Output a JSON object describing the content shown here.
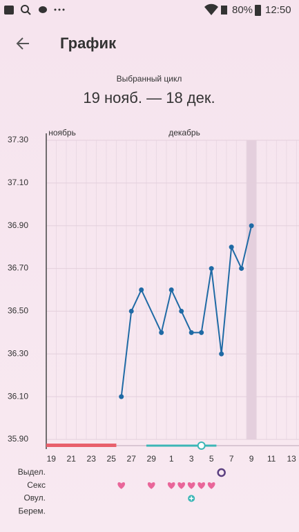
{
  "status_bar": {
    "battery": "80%",
    "time": "12:50"
  },
  "header": {
    "title": "График"
  },
  "cycle": {
    "caption": "Выбранный цикл",
    "range": "19 нояб. — 18 дек."
  },
  "chart_data": {
    "type": "line",
    "months": [
      {
        "label": "ноябрь",
        "x": 0
      },
      {
        "label": "декабрь",
        "x": 12
      }
    ],
    "xlim": [
      -0.5,
      24.75
    ],
    "xticks": [
      {
        "value": 0,
        "label": "19"
      },
      {
        "value": 2,
        "label": "21"
      },
      {
        "value": 4,
        "label": "23"
      },
      {
        "value": 6,
        "label": "25"
      },
      {
        "value": 8,
        "label": "27"
      },
      {
        "value": 10,
        "label": "29"
      },
      {
        "value": 12,
        "label": "1"
      },
      {
        "value": 14,
        "label": "3"
      },
      {
        "value": 16,
        "label": "5"
      },
      {
        "value": 18,
        "label": "7"
      },
      {
        "value": 20,
        "label": "9"
      },
      {
        "value": 22,
        "label": "11"
      },
      {
        "value": 24,
        "label": "13"
      }
    ],
    "ylim": [
      35.9,
      37.3
    ],
    "yticks": [
      {
        "value": 35.9,
        "label": "35.90"
      },
      {
        "value": 36.1,
        "label": "36.10"
      },
      {
        "value": 36.3,
        "label": "36.30"
      },
      {
        "value": 36.5,
        "label": "36.50"
      },
      {
        "value": 36.7,
        "label": "36.70"
      },
      {
        "value": 36.9,
        "label": "36.90"
      },
      {
        "value": 37.1,
        "label": "37.10"
      },
      {
        "value": 37.3,
        "label": "37.30"
      }
    ],
    "grid": true,
    "highlight_x": 20,
    "series": [
      {
        "color": "#1f6aa5",
        "x": [
          7,
          8,
          9,
          11,
          12,
          13,
          14,
          15,
          16,
          17,
          18,
          19,
          20
        ],
        "values": [
          36.1,
          36.5,
          36.6,
          36.4,
          36.6,
          36.5,
          36.4,
          36.4,
          36.7,
          36.3,
          36.8,
          36.7,
          36.9
        ]
      }
    ],
    "period": {
      "color": "#e8606c",
      "x": [
        0,
        6
      ]
    },
    "fertile": {
      "color": "#3bb6b6",
      "x": [
        10,
        16
      ],
      "ovulation": 15
    },
    "rows": [
      {
        "label": "Выдел.",
        "color": "#5b3f80",
        "days": [
          17
        ]
      },
      {
        "label": "Секс",
        "color": "#e9669a",
        "days": [
          7,
          10,
          12,
          13,
          14,
          15,
          16
        ]
      },
      {
        "label": "Овул.",
        "color": "#3bb6b6",
        "days": [
          14
        ]
      },
      {
        "label": "Берем.",
        "color": "#5b3f80",
        "days": []
      }
    ]
  }
}
